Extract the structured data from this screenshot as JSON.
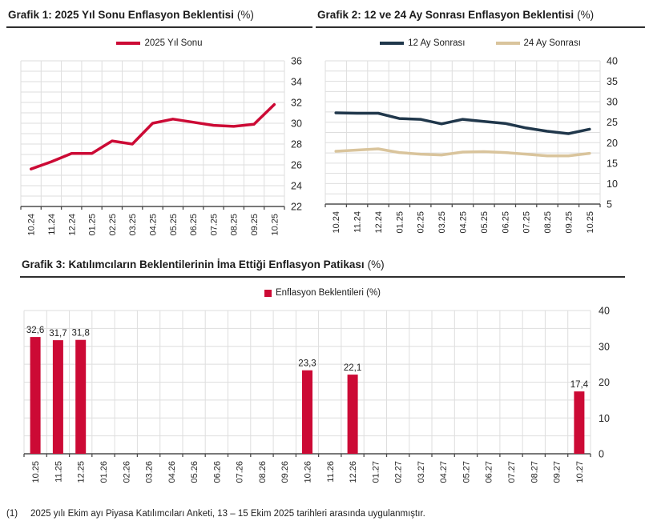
{
  "colors": {
    "red": "#CC0A35",
    "navy": "#20374B",
    "tan": "#D9C49C",
    "gridline": "#DEDEDE",
    "axis": "#4D4D4D",
    "tick_text": "#262626",
    "label_text": "#1F1F1F",
    "title_rule": "#2E2E2E"
  },
  "chart_data": [
    {
      "id": "grafik1",
      "type": "line",
      "title_bold": "Grafik 1: 2025 Yıl Sonu Enflasyon Beklentisi",
      "title_unit": "(%)",
      "xlabel": "",
      "ylabel": "",
      "ylim": [
        22,
        36
      ],
      "ytick_step": 2,
      "grid_step": 1,
      "grid_on": true,
      "legend_position": "top",
      "y_axis_side": "right",
      "categories": [
        "10.24",
        "11.24",
        "12.24",
        "01.25",
        "02.25",
        "03.25",
        "04.25",
        "05.25",
        "06.25",
        "07.25",
        "08.25",
        "09.25",
        "10.25"
      ],
      "series": [
        {
          "name": "2025 Yıl Sonu",
          "color": "#CC0A35",
          "values": [
            25.6,
            26.3,
            27.1,
            27.1,
            28.3,
            28.0,
            30.0,
            30.4,
            30.1,
            29.8,
            29.7,
            29.9,
            31.8
          ]
        }
      ]
    },
    {
      "id": "grafik2",
      "type": "line",
      "title_bold": "Grafik 2: 12 ve 24 Ay Sonrası Enflasyon Beklentisi",
      "title_unit": "(%)",
      "xlabel": "",
      "ylabel": "",
      "ylim": [
        5,
        40
      ],
      "ytick_step": 5,
      "grid_step": 2.5,
      "grid_on": true,
      "legend_position": "top",
      "y_axis_side": "right",
      "categories": [
        "10.24",
        "11.24",
        "12.24",
        "01.25",
        "02.25",
        "03.25",
        "04.25",
        "05.25",
        "06.25",
        "07.25",
        "08.25",
        "09.25",
        "10.25"
      ],
      "series": [
        {
          "name": "12 Ay Sonrası",
          "color": "#20374B",
          "values": [
            27.3,
            27.2,
            27.2,
            25.9,
            25.7,
            24.6,
            25.7,
            25.2,
            24.7,
            23.6,
            22.8,
            22.2,
            23.3
          ]
        },
        {
          "name": "24 Ay Sonrası",
          "color": "#D9C49C",
          "values": [
            17.9,
            18.2,
            18.5,
            17.6,
            17.2,
            17.0,
            17.7,
            17.8,
            17.6,
            17.2,
            16.8,
            16.8,
            17.4
          ]
        }
      ]
    },
    {
      "id": "grafik3",
      "type": "bar",
      "title_bold": "Grafik 3: Katılımcıların Beklentilerinin İma Ettiği Enflasyon Patikası",
      "title_unit": "(%)",
      "xlabel": "",
      "ylabel": "",
      "ylim": [
        0,
        40
      ],
      "ytick_step": 10,
      "grid_step": 5,
      "grid_on": true,
      "legend_position": "top",
      "y_axis_side": "right",
      "categories": [
        "10.25",
        "11.25",
        "12.25",
        "01.26",
        "02.26",
        "03.26",
        "04.26",
        "05.26",
        "06.26",
        "07.26",
        "08.26",
        "09.26",
        "10.26",
        "11.26",
        "12.26",
        "01.27",
        "02.27",
        "03.27",
        "04.27",
        "05.27",
        "06.27",
        "07.27",
        "08.27",
        "09.27",
        "10.27"
      ],
      "series": [
        {
          "name": "Enflasyon Beklentileri (%)",
          "color": "#CC0A35",
          "values": [
            32.6,
            31.7,
            31.8,
            null,
            null,
            null,
            null,
            null,
            null,
            null,
            null,
            null,
            23.3,
            null,
            22.1,
            null,
            null,
            null,
            null,
            null,
            null,
            null,
            null,
            null,
            17.4
          ],
          "labels": [
            "32,6",
            "31,7",
            "31,8",
            null,
            null,
            null,
            null,
            null,
            null,
            null,
            null,
            null,
            "23,3",
            null,
            "22,1",
            null,
            null,
            null,
            null,
            null,
            null,
            null,
            null,
            null,
            "17,4"
          ]
        }
      ]
    }
  ],
  "footnote": {
    "marker": "(1)",
    "text": "2025 yılı Ekim ayı Piyasa Katılımcıları Anketi, 13 – 15 Ekim 2025 tarihleri arasında uygulanmıştır."
  }
}
